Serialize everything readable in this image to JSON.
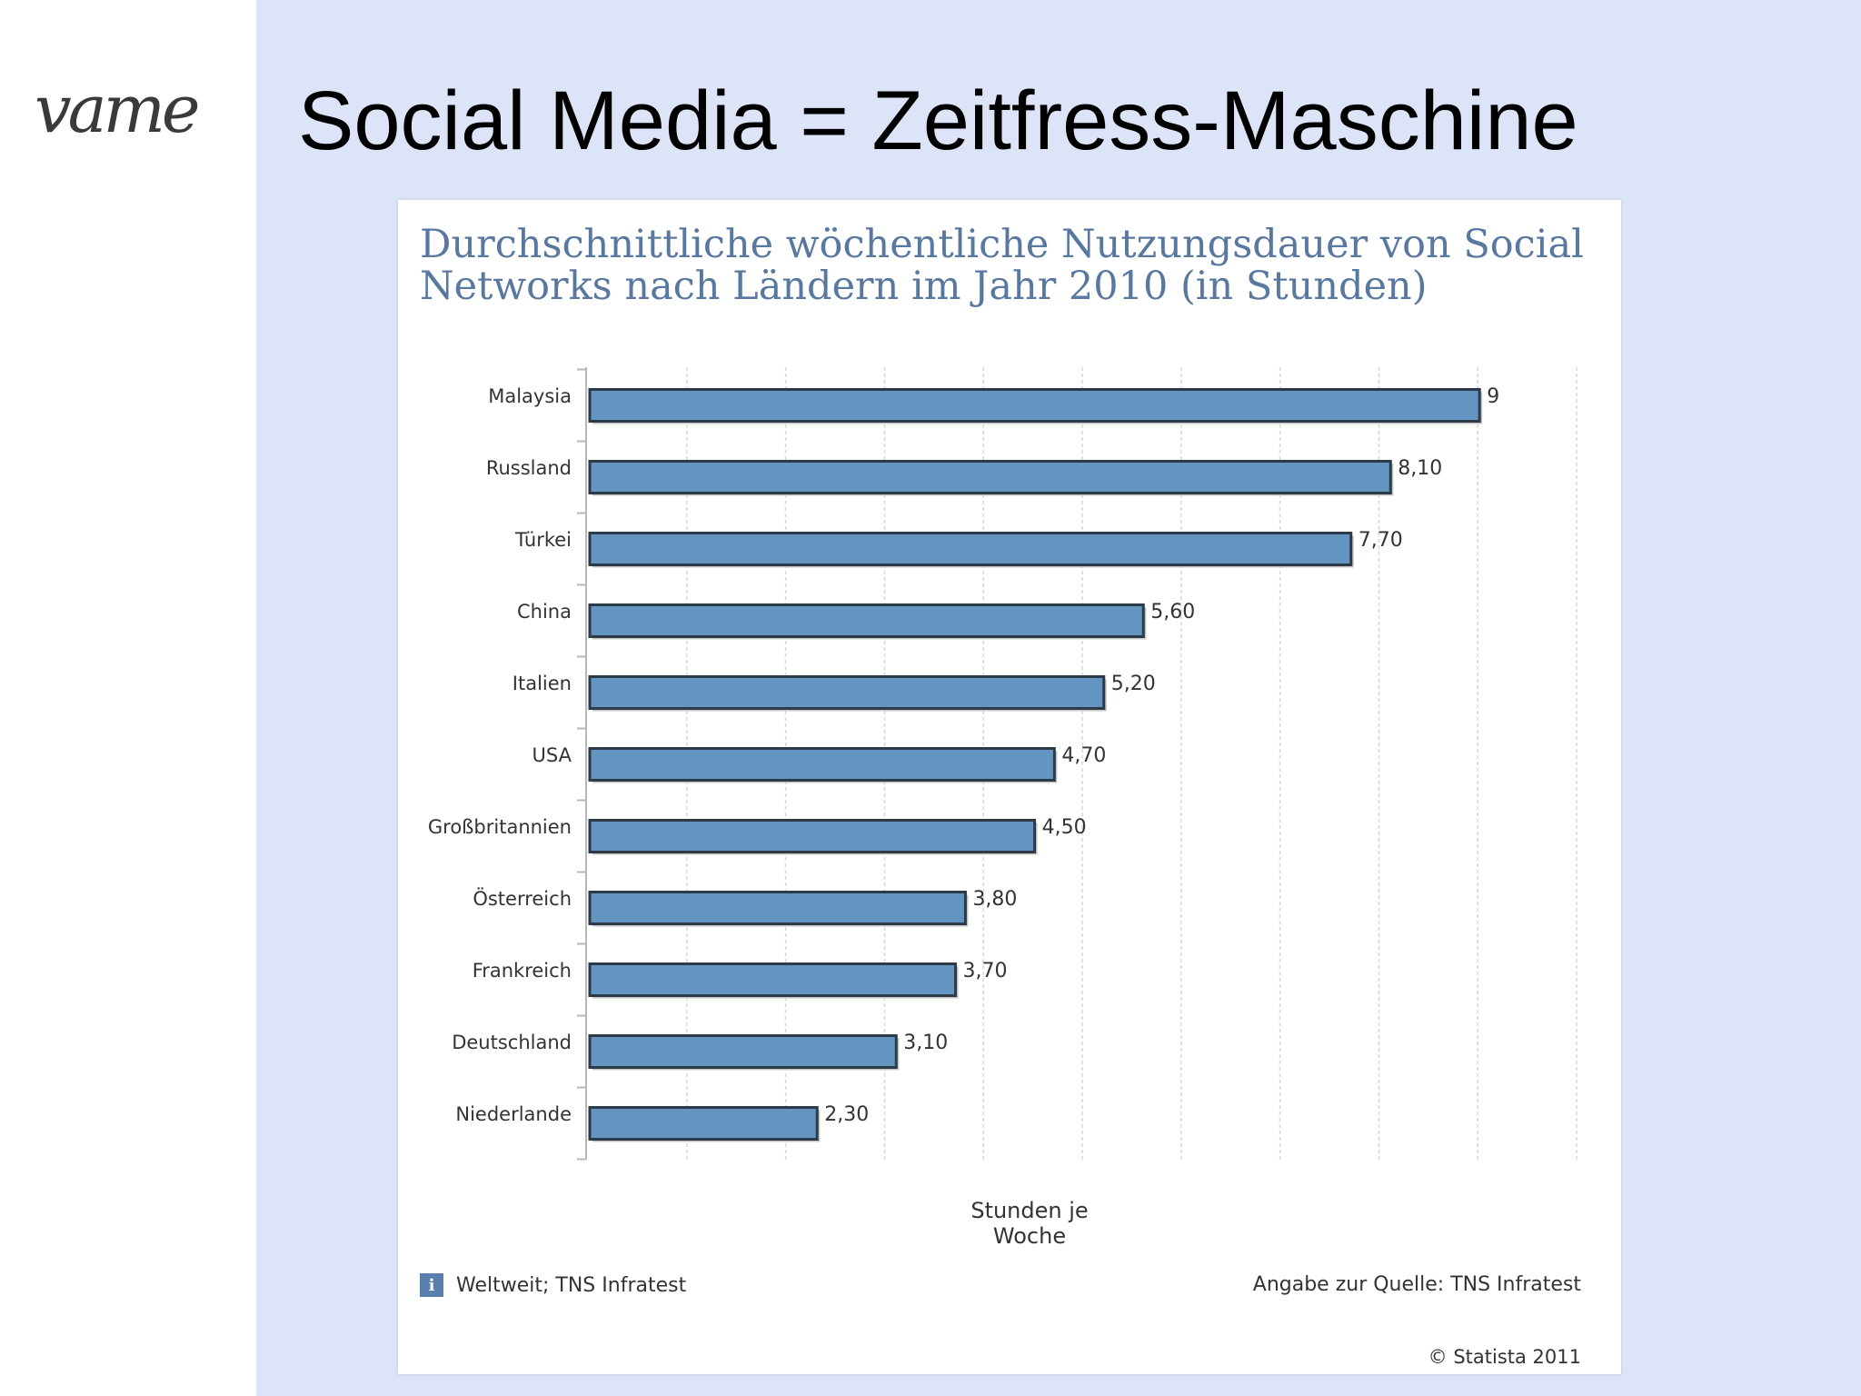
{
  "slide": {
    "logo_text": "vame",
    "title": "Social Media = Zeitfress-Maschine"
  },
  "chart_data": {
    "type": "bar",
    "orientation": "horizontal",
    "title": "Durchschnittliche wöchentliche Nutzungsdauer von Social Networks nach Ländern im Jahr 2010 (in Stunden)",
    "categories": [
      "Malaysia",
      "Russland",
      "Türkei",
      "China",
      "Italien",
      "USA",
      "Großbritannien",
      "Österreich",
      "Frankreich",
      "Deutschland",
      "Niederlande"
    ],
    "values": [
      9,
      8.1,
      7.7,
      5.6,
      5.2,
      4.7,
      4.5,
      3.8,
      3.7,
      3.1,
      2.3
    ],
    "value_labels": [
      "9",
      "8,10",
      "7,70",
      "5,60",
      "5,20",
      "4,70",
      "4,50",
      "3,80",
      "3,70",
      "3,10",
      "2,30"
    ],
    "xlabel": "Stunden je Woche",
    "xlim": [
      0,
      10
    ],
    "grid": true,
    "bar_color": "#6494c0",
    "bar_border_color": "#2d3a48"
  },
  "footer": {
    "info_icon": "i",
    "note": "Weltweit; TNS Infratest",
    "source": "Angabe zur Quelle: TNS Infratest",
    "copyright": "© Statista 2011"
  }
}
